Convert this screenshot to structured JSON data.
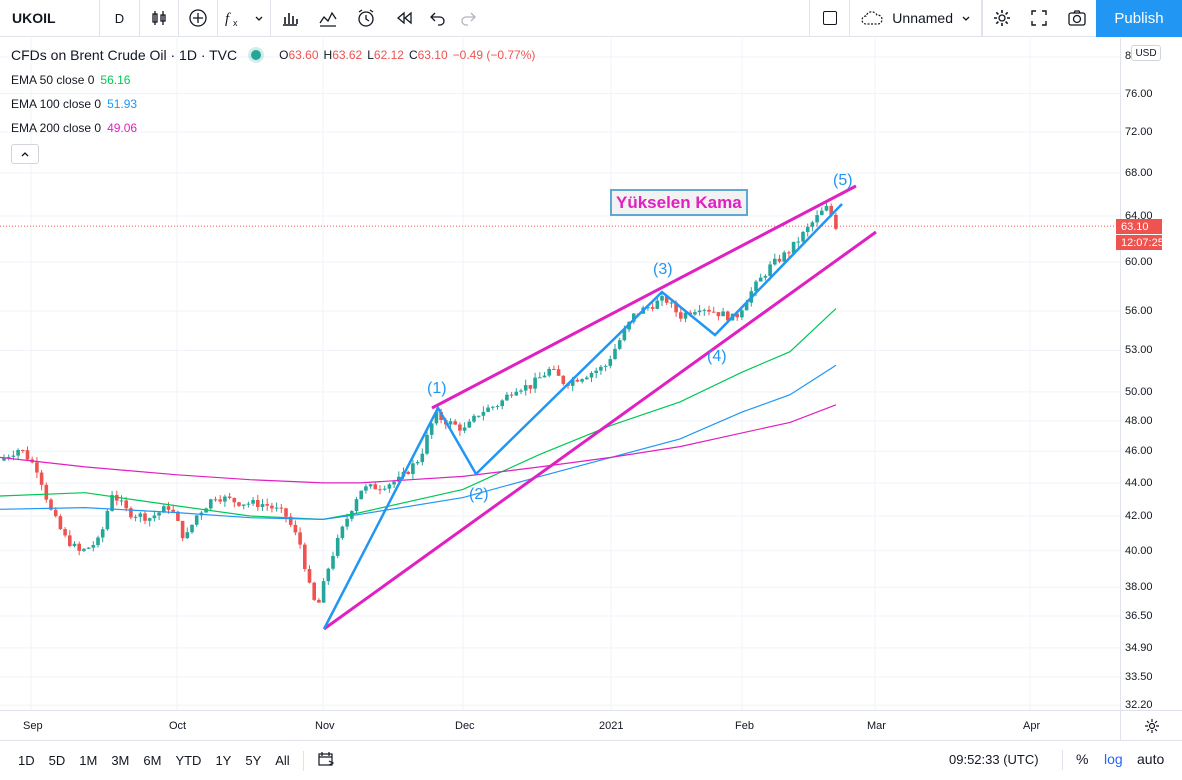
{
  "toolbar": {
    "symbol": "UKOIL",
    "interval": "D",
    "layout_name": "Unnamed",
    "publish_label": "Publish"
  },
  "legend": {
    "title": "CFDs on Brent Crude Oil · 1D · TVC",
    "open_label": "O",
    "open": "63.60",
    "high_label": "H",
    "high": "63.62",
    "low_label": "L",
    "low": "62.12",
    "close_label": "C",
    "close": "63.10",
    "change": "−0.49 (−0.77%)",
    "indicators": [
      {
        "label": "EMA 50 close 0",
        "value": "56.16",
        "color": "#00c853"
      },
      {
        "label": "EMA 100 close 0",
        "value": "51.93",
        "color": "#2196f3"
      },
      {
        "label": "EMA 200 close 0",
        "value": "49.06",
        "color": "#e020c0"
      }
    ]
  },
  "price_axis": {
    "currency": "USD",
    "ticks": [
      "8",
      "76.00",
      "72.00",
      "68.00",
      "64.00",
      "60.00",
      "56.00",
      "53.00",
      "50.00",
      "48.00",
      "46.00",
      "44.00",
      "42.00",
      "40.00",
      "38.00",
      "36.50",
      "34.90",
      "33.50",
      "32.20"
    ],
    "last_price": "63.10",
    "countdown": "12:07:25"
  },
  "time_axis": {
    "labels": [
      "Sep",
      "Oct",
      "Nov",
      "Dec",
      "2021",
      "Feb",
      "Mar",
      "Apr"
    ]
  },
  "annotations": {
    "pattern_label": "Yükselen Kama",
    "waves": [
      "(1)",
      "(2)",
      "(3)",
      "(4)",
      "(5)"
    ]
  },
  "bottombar": {
    "ranges": [
      "1D",
      "5D",
      "1M",
      "3M",
      "6M",
      "YTD",
      "1Y",
      "5Y",
      "All"
    ],
    "clock": "09:52:33 (UTC)",
    "percent_label": "%",
    "log_label": "log",
    "auto_label": "auto"
  },
  "colors": {
    "up": "#26a69a",
    "down": "#ef5350",
    "ema50": "#00c853",
    "ema100": "#2196f3",
    "ema200": "#e020c0",
    "wedge": "#e020c0",
    "waves": "#2196f3"
  },
  "chart_data": {
    "type": "candlestick",
    "title": "CFDs on Brent Crude Oil · 1D · TVC",
    "ylim": [
      32.2,
      80
    ],
    "log_scale": true,
    "series": [
      {
        "name": "EMA 50 close 0",
        "values": [
          43.2,
          43.4,
          42.6,
          42.0,
          41.8,
          42.2,
          43.6,
          45.8,
          47.7,
          49.3,
          51.4,
          52.9,
          56.2
        ]
      },
      {
        "name": "EMA 100 close 0",
        "values": [
          42.4,
          42.5,
          42.2,
          41.9,
          41.8,
          42.1,
          43.1,
          44.4,
          45.6,
          46.8,
          48.6,
          49.8,
          51.9
        ]
      },
      {
        "name": "EMA 200 close 0",
        "values": [
          45.6,
          45.0,
          44.5,
          44.2,
          44.0,
          44.0,
          44.4,
          45.0,
          45.6,
          46.3,
          47.2,
          47.9,
          49.1
        ]
      }
    ],
    "x": [
      "Aug 27",
      "Sep 15",
      "Oct 1",
      "Oct 15",
      "Nov 1",
      "Nov 10",
      "Dec 1",
      "Dec 15",
      "Jan 4",
      "Jan 15",
      "Feb 1",
      "Feb 10",
      "Feb 19"
    ]
  }
}
